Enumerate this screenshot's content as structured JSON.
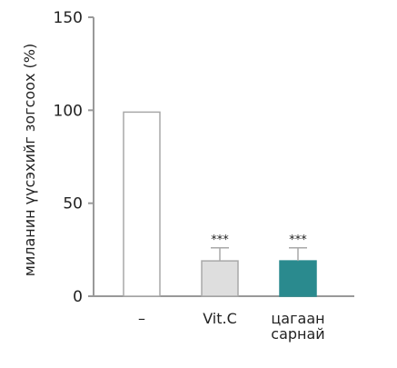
{
  "chart_data": {
    "type": "bar",
    "title": "",
    "xlabel": "",
    "ylabel": "миланин үүсэхийг зогсоох (%)",
    "ylim": [
      0,
      150
    ],
    "yticks": [
      0,
      50,
      100,
      150
    ],
    "categories": [
      [
        "–"
      ],
      [
        "Vit.C"
      ],
      [
        "цагаан",
        "сарнай"
      ]
    ],
    "values": [
      99,
      19,
      19
    ],
    "errors": [
      0,
      7,
      7
    ],
    "significance": [
      "",
      "***",
      "***"
    ],
    "colors": [
      "#ffffff",
      "#dedede",
      "#2a8a8e"
    ],
    "edge_colors": [
      "#a8a8a8",
      "#a8a8a8",
      "#2a8a8e"
    ],
    "grid": false
  }
}
